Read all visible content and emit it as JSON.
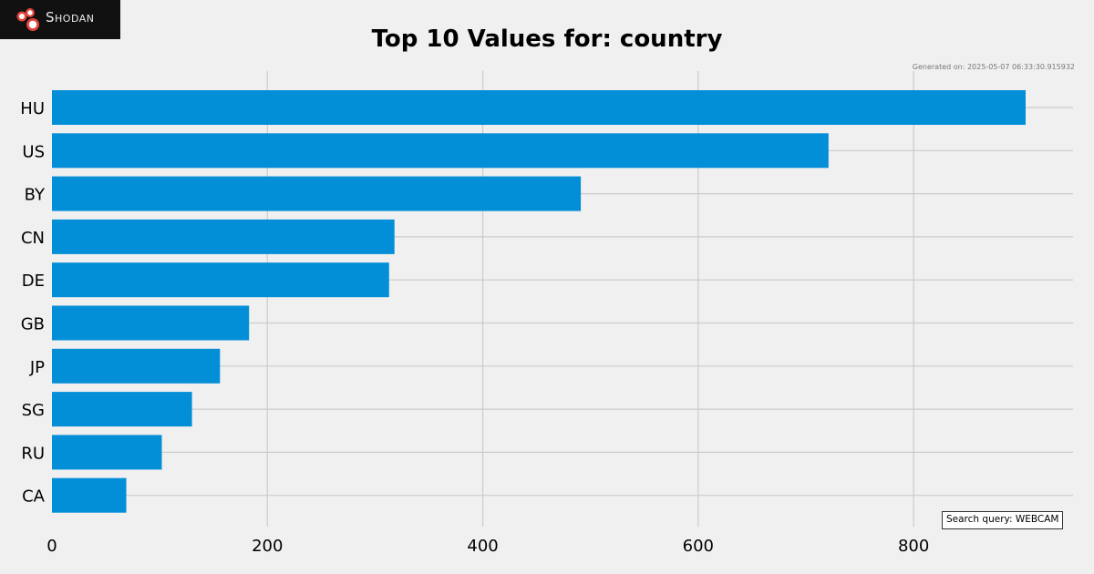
{
  "logo": {
    "text": "Shodan",
    "icon": "shodan-logo-icon",
    "background": "#111111",
    "accent": "#e0453d"
  },
  "generated_text": "Generated on: 2025-05-07 06:33:30.915932",
  "query_text": "Search query: WEBCAM",
  "chart_data": {
    "type": "bar",
    "orientation": "horizontal",
    "title": "Top 10 Values for: country",
    "xlabel": "",
    "ylabel": "",
    "categories": [
      "HU",
      "US",
      "BY",
      "CN",
      "DE",
      "GB",
      "JP",
      "SG",
      "RU",
      "CA"
    ],
    "values": [
      904,
      721,
      491,
      318,
      313,
      183,
      156,
      130,
      102,
      69
    ],
    "xlim": [
      0,
      950
    ],
    "xticks": [
      0,
      200,
      400,
      600,
      800
    ],
    "grid": true,
    "bar_color": "#038ed8",
    "grid_color": "#cbcbcb"
  }
}
